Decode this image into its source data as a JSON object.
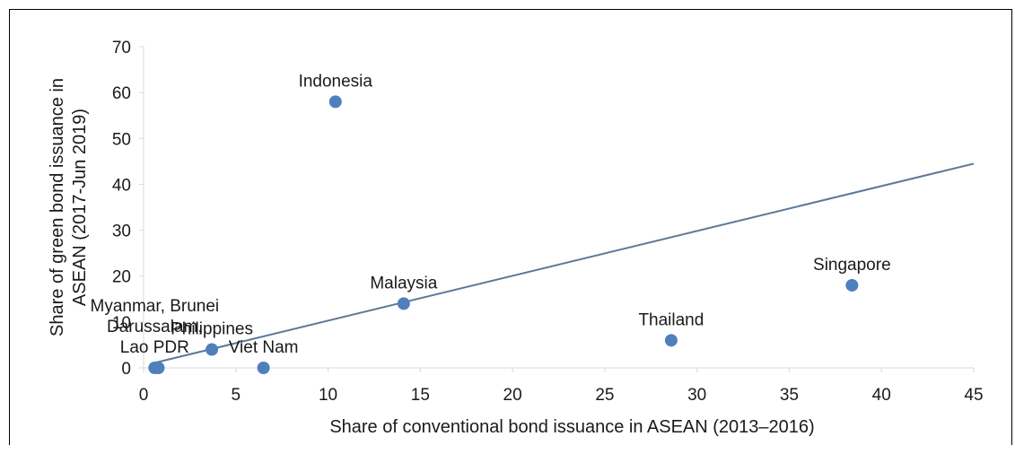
{
  "colors": {
    "marker": "#4f7fbd",
    "trendline": "#5b7897",
    "axis": "#d9d9d9",
    "text": "#1a1a1a"
  },
  "chart_data": {
    "type": "scatter",
    "title": "",
    "xlabel": "Share of conventional bond issuance in ASEAN (2013–2016)",
    "ylabel_lines": [
      "Share of green bond issuance in",
      "ASEAN (2017-Jun 2019)"
    ],
    "xlim": [
      0,
      45
    ],
    "ylim": [
      0,
      70
    ],
    "xticks": [
      "0",
      "5",
      "10",
      "15",
      "20",
      "25",
      "30",
      "35",
      "40",
      "45"
    ],
    "yticks": [
      "0",
      "10",
      "20",
      "30",
      "40",
      "50",
      "60",
      "70"
    ],
    "points": [
      {
        "x": 10.4,
        "y": 58,
        "label": [
          "Indonesia"
        ]
      },
      {
        "x": 14.1,
        "y": 14,
        "label": [
          "Malaysia"
        ]
      },
      {
        "x": 38.4,
        "y": 18,
        "label": [
          "Singapore"
        ]
      },
      {
        "x": 28.6,
        "y": 6,
        "label": [
          "Thailand"
        ]
      },
      {
        "x": 3.7,
        "y": 4,
        "label": [
          "Philippines"
        ]
      },
      {
        "x": 6.5,
        "y": 0,
        "label": [
          "Viet Nam"
        ]
      },
      {
        "x": 0.6,
        "y": 0,
        "label": [
          "Myanmar, Brunei",
          "Darussalam,",
          "Lao PDR"
        ]
      },
      {
        "x": 0.8,
        "y": 0,
        "label": []
      }
    ],
    "trendline": {
      "type": "linear",
      "x": [
        0.4,
        45
      ],
      "y": [
        0.9,
        44.5
      ]
    },
    "grid": false,
    "legend": "none"
  }
}
